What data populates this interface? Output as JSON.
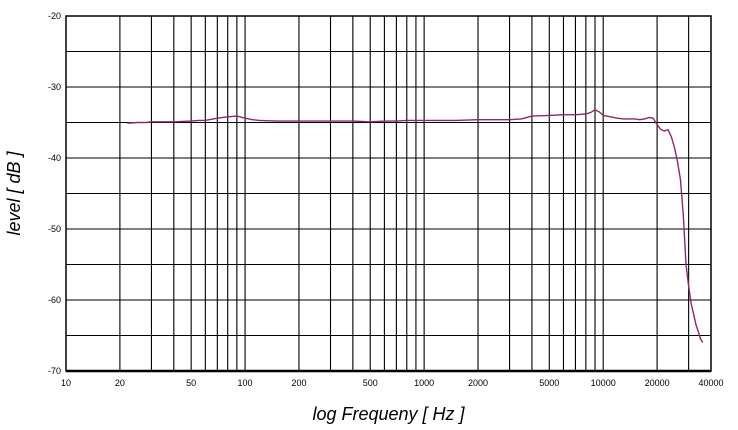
{
  "chart_data": {
    "type": "line",
    "xlabel": "log Frequeny [ Hz ]",
    "ylabel": "level [ dB ]",
    "x_scale": "log",
    "xlim": [
      10,
      40000
    ],
    "ylim": [
      -70,
      -20
    ],
    "grid": true,
    "x_ticks": [
      10,
      20,
      50,
      100,
      200,
      500,
      1000,
      2000,
      5000,
      10000,
      20000,
      40000
    ],
    "x_tick_labels": [
      "10",
      "20",
      "50",
      "100",
      "200",
      "500",
      "1000",
      "2000",
      "5000",
      "10000",
      "20000",
      "40000"
    ],
    "y_ticks": [
      -70,
      -60,
      -50,
      -40,
      -30,
      -20
    ],
    "y_tick_labels": [
      "-70",
      "-60",
      "-50",
      "-40",
      "-30",
      "-20"
    ],
    "series_color": "#8b2a6b",
    "series": [
      {
        "x": [
          22,
          25,
          28,
          30,
          40,
          50,
          55,
          60,
          70,
          80,
          90,
          100,
          110,
          120,
          150,
          200,
          300,
          400,
          500,
          600,
          700,
          800,
          1000,
          1500,
          2000,
          3000,
          3500,
          4000,
          5000,
          6000,
          7000,
          8000,
          8500,
          9000,
          9500,
          10000,
          11000,
          12000,
          13000,
          14000,
          15000,
          16000,
          17000,
          18000,
          19000,
          20000,
          21000,
          22000,
          23000,
          24000,
          25000,
          25500,
          26000,
          27000,
          28000,
          29000,
          30000,
          31000,
          32000,
          33000,
          34000,
          35000,
          36000
        ],
        "y": [
          -35.1,
          -35.0,
          -35.0,
          -34.9,
          -34.9,
          -34.8,
          -34.7,
          -34.7,
          -34.4,
          -34.2,
          -34.1,
          -34.4,
          -34.6,
          -34.7,
          -34.8,
          -34.8,
          -34.8,
          -34.8,
          -34.9,
          -34.8,
          -34.8,
          -34.7,
          -34.7,
          -34.7,
          -34.6,
          -34.6,
          -34.5,
          -34.1,
          -34.0,
          -33.9,
          -33.9,
          -33.8,
          -33.6,
          -33.2,
          -33.5,
          -34.0,
          -34.2,
          -34.4,
          -34.5,
          -34.5,
          -34.5,
          -34.6,
          -34.5,
          -34.3,
          -34.4,
          -35.3,
          -36.0,
          -36.2,
          -36.0,
          -37.0,
          -38.5,
          -39.5,
          -40.5,
          -43.0,
          -48.0,
          -55.0,
          -58.0,
          -60.5,
          -62.0,
          -63.5,
          -64.5,
          -65.5,
          -66.0
        ]
      }
    ]
  }
}
